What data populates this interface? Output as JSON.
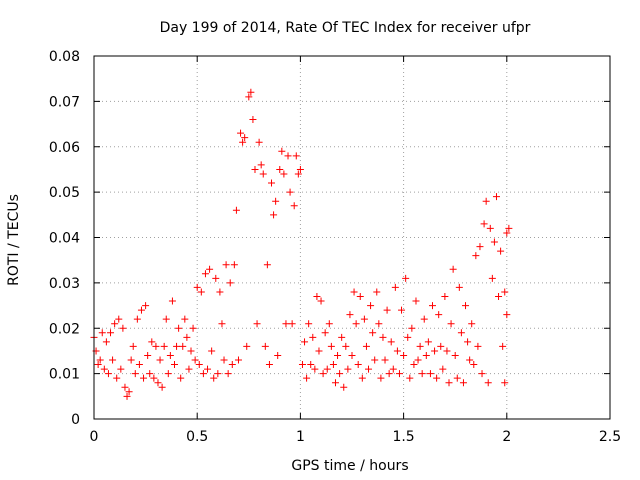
{
  "chart_data": {
    "type": "scatter",
    "title": "Day 199 of 2014, Rate Of TEC Index for receiver ufpr",
    "xlabel": "GPS time / hours",
    "ylabel": "ROTI / TECUs",
    "xlim": [
      0,
      2.5
    ],
    "ylim": [
      0,
      0.08
    ],
    "grid": true,
    "marker": "+",
    "marker_color": "#ff0000",
    "x_ticks": [
      0,
      0.5,
      1,
      1.5,
      2,
      2.5
    ],
    "x_tick_labels": [
      "0",
      "0.5",
      "1",
      "1.5",
      "2",
      "2.5"
    ],
    "y_ticks": [
      0,
      0.01,
      0.02,
      0.03,
      0.04,
      0.05,
      0.06,
      0.07,
      0.08
    ],
    "y_tick_labels": [
      "0",
      "0.01",
      "0.02",
      "0.03",
      "0.04",
      "0.05",
      "0.06",
      "0.07",
      "0.08"
    ],
    "series": [
      {
        "name": "ROTI",
        "points": [
          [
            0.0,
            0.018
          ],
          [
            0.01,
            0.015
          ],
          [
            0.02,
            0.012
          ],
          [
            0.03,
            0.013
          ],
          [
            0.04,
            0.019
          ],
          [
            0.05,
            0.011
          ],
          [
            0.06,
            0.017
          ],
          [
            0.07,
            0.01
          ],
          [
            0.08,
            0.019
          ],
          [
            0.09,
            0.013
          ],
          [
            0.1,
            0.021
          ],
          [
            0.11,
            0.009
          ],
          [
            0.12,
            0.022
          ],
          [
            0.13,
            0.011
          ],
          [
            0.14,
            0.02
          ],
          [
            0.15,
            0.007
          ],
          [
            0.16,
            0.005
          ],
          [
            0.17,
            0.006
          ],
          [
            0.18,
            0.013
          ],
          [
            0.19,
            0.016
          ],
          [
            0.2,
            0.01
          ],
          [
            0.21,
            0.022
          ],
          [
            0.22,
            0.012
          ],
          [
            0.23,
            0.024
          ],
          [
            0.24,
            0.009
          ],
          [
            0.25,
            0.025
          ],
          [
            0.26,
            0.014
          ],
          [
            0.27,
            0.01
          ],
          [
            0.28,
            0.017
          ],
          [
            0.29,
            0.009
          ],
          [
            0.3,
            0.016
          ],
          [
            0.31,
            0.008
          ],
          [
            0.32,
            0.013
          ],
          [
            0.33,
            0.007
          ],
          [
            0.34,
            0.016
          ],
          [
            0.35,
            0.022
          ],
          [
            0.36,
            0.01
          ],
          [
            0.37,
            0.014
          ],
          [
            0.38,
            0.026
          ],
          [
            0.39,
            0.012
          ],
          [
            0.4,
            0.016
          ],
          [
            0.41,
            0.02
          ],
          [
            0.42,
            0.009
          ],
          [
            0.43,
            0.016
          ],
          [
            0.44,
            0.022
          ],
          [
            0.45,
            0.018
          ],
          [
            0.46,
            0.011
          ],
          [
            0.47,
            0.015
          ],
          [
            0.48,
            0.02
          ],
          [
            0.49,
            0.013
          ],
          [
            0.5,
            0.029
          ],
          [
            0.51,
            0.012
          ],
          [
            0.52,
            0.028
          ],
          [
            0.53,
            0.01
          ],
          [
            0.54,
            0.032
          ],
          [
            0.55,
            0.011
          ],
          [
            0.56,
            0.033
          ],
          [
            0.57,
            0.015
          ],
          [
            0.58,
            0.009
          ],
          [
            0.59,
            0.031
          ],
          [
            0.6,
            0.01
          ],
          [
            0.61,
            0.028
          ],
          [
            0.62,
            0.021
          ],
          [
            0.63,
            0.013
          ],
          [
            0.64,
            0.034
          ],
          [
            0.65,
            0.01
          ],
          [
            0.66,
            0.03
          ],
          [
            0.67,
            0.012
          ],
          [
            0.68,
            0.034
          ],
          [
            0.69,
            0.046
          ],
          [
            0.7,
            0.013
          ],
          [
            0.71,
            0.063
          ],
          [
            0.72,
            0.061
          ],
          [
            0.73,
            0.062
          ],
          [
            0.74,
            0.016
          ],
          [
            0.75,
            0.071
          ],
          [
            0.76,
            0.072
          ],
          [
            0.77,
            0.066
          ],
          [
            0.78,
            0.055
          ],
          [
            0.79,
            0.021
          ],
          [
            0.8,
            0.061
          ],
          [
            0.81,
            0.056
          ],
          [
            0.82,
            0.054
          ],
          [
            0.83,
            0.016
          ],
          [
            0.84,
            0.034
          ],
          [
            0.85,
            0.012
          ],
          [
            0.86,
            0.052
          ],
          [
            0.87,
            0.045
          ],
          [
            0.88,
            0.048
          ],
          [
            0.89,
            0.014
          ],
          [
            0.9,
            0.055
          ],
          [
            0.91,
            0.059
          ],
          [
            0.92,
            0.054
          ],
          [
            0.93,
            0.021
          ],
          [
            0.94,
            0.058
          ],
          [
            0.95,
            0.05
          ],
          [
            0.96,
            0.021
          ],
          [
            0.97,
            0.047
          ],
          [
            0.98,
            0.058
          ],
          [
            0.99,
            0.054
          ],
          [
            1.0,
            0.055
          ],
          [
            1.01,
            0.012
          ],
          [
            1.02,
            0.017
          ],
          [
            1.03,
            0.009
          ],
          [
            1.04,
            0.021
          ],
          [
            1.05,
            0.012
          ],
          [
            1.06,
            0.018
          ],
          [
            1.07,
            0.011
          ],
          [
            1.08,
            0.027
          ],
          [
            1.09,
            0.015
          ],
          [
            1.1,
            0.026
          ],
          [
            1.11,
            0.01
          ],
          [
            1.12,
            0.019
          ],
          [
            1.13,
            0.011
          ],
          [
            1.14,
            0.021
          ],
          [
            1.15,
            0.016
          ],
          [
            1.16,
            0.012
          ],
          [
            1.17,
            0.008
          ],
          [
            1.18,
            0.014
          ],
          [
            1.19,
            0.01
          ],
          [
            1.2,
            0.018
          ],
          [
            1.21,
            0.007
          ],
          [
            1.22,
            0.016
          ],
          [
            1.23,
            0.011
          ],
          [
            1.24,
            0.023
          ],
          [
            1.25,
            0.014
          ],
          [
            1.26,
            0.028
          ],
          [
            1.27,
            0.021
          ],
          [
            1.28,
            0.012
          ],
          [
            1.29,
            0.027
          ],
          [
            1.3,
            0.009
          ],
          [
            1.31,
            0.022
          ],
          [
            1.32,
            0.016
          ],
          [
            1.33,
            0.011
          ],
          [
            1.34,
            0.025
          ],
          [
            1.35,
            0.019
          ],
          [
            1.36,
            0.013
          ],
          [
            1.37,
            0.028
          ],
          [
            1.38,
            0.021
          ],
          [
            1.39,
            0.009
          ],
          [
            1.4,
            0.018
          ],
          [
            1.41,
            0.013
          ],
          [
            1.42,
            0.024
          ],
          [
            1.43,
            0.01
          ],
          [
            1.44,
            0.017
          ],
          [
            1.45,
            0.011
          ],
          [
            1.46,
            0.029
          ],
          [
            1.47,
            0.015
          ],
          [
            1.48,
            0.01
          ],
          [
            1.49,
            0.024
          ],
          [
            1.5,
            0.014
          ],
          [
            1.51,
            0.031
          ],
          [
            1.52,
            0.018
          ],
          [
            1.53,
            0.009
          ],
          [
            1.54,
            0.02
          ],
          [
            1.55,
            0.012
          ],
          [
            1.56,
            0.026
          ],
          [
            1.57,
            0.013
          ],
          [
            1.58,
            0.016
          ],
          [
            1.59,
            0.01
          ],
          [
            1.6,
            0.022
          ],
          [
            1.61,
            0.014
          ],
          [
            1.62,
            0.017
          ],
          [
            1.63,
            0.01
          ],
          [
            1.64,
            0.025
          ],
          [
            1.65,
            0.015
          ],
          [
            1.66,
            0.009
          ],
          [
            1.67,
            0.023
          ],
          [
            1.68,
            0.016
          ],
          [
            1.69,
            0.011
          ],
          [
            1.7,
            0.027
          ],
          [
            1.71,
            0.015
          ],
          [
            1.72,
            0.008
          ],
          [
            1.73,
            0.021
          ],
          [
            1.74,
            0.033
          ],
          [
            1.75,
            0.014
          ],
          [
            1.76,
            0.009
          ],
          [
            1.77,
            0.029
          ],
          [
            1.78,
            0.019
          ],
          [
            1.79,
            0.008
          ],
          [
            1.8,
            0.025
          ],
          [
            1.81,
            0.017
          ],
          [
            1.82,
            0.013
          ],
          [
            1.83,
            0.021
          ],
          [
            1.84,
            0.012
          ],
          [
            1.85,
            0.036
          ],
          [
            1.86,
            0.016
          ],
          [
            1.87,
            0.038
          ],
          [
            1.88,
            0.01
          ],
          [
            1.89,
            0.043
          ],
          [
            1.9,
            0.048
          ],
          [
            1.91,
            0.008
          ],
          [
            1.92,
            0.042
          ],
          [
            1.93,
            0.031
          ],
          [
            1.94,
            0.039
          ],
          [
            1.95,
            0.049
          ],
          [
            1.96,
            0.027
          ],
          [
            1.97,
            0.037
          ],
          [
            1.98,
            0.016
          ],
          [
            1.99,
            0.008
          ],
          [
            2.0,
            0.041
          ],
          [
            2.01,
            0.042
          ],
          [
            2.0,
            0.023
          ],
          [
            1.99,
            0.028
          ]
        ]
      }
    ]
  }
}
